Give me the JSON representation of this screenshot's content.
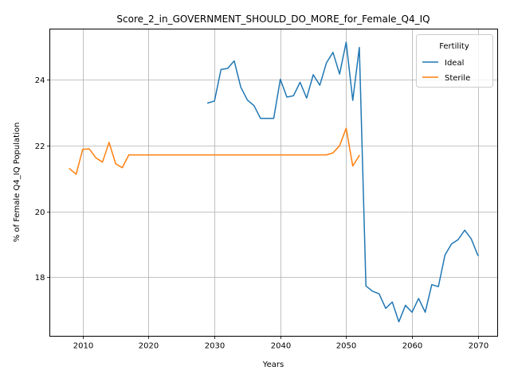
{
  "chart_data": {
    "type": "line",
    "title": "Score_2_in_GOVERNMENT_SHOULD_DO_MORE_for_Female_Q4_IQ",
    "xlabel": "Years",
    "ylabel": "% of Female Q4_IQ Population",
    "xlim": [
      2005,
      2073
    ],
    "ylim": [
      16.2,
      25.55
    ],
    "xticks": [
      2010,
      2020,
      2030,
      2040,
      2050,
      2060,
      2070
    ],
    "yticks": [
      18,
      20,
      22,
      24
    ],
    "grid": true,
    "legend": {
      "title": "Fertility",
      "placement": "top-right"
    },
    "series": [
      {
        "name": "Ideal",
        "color": "#1f77b4",
        "x": [
          2029,
          2030,
          2031,
          2032,
          2033,
          2034,
          2035,
          2036,
          2037,
          2038,
          2039,
          2040,
          2041,
          2042,
          2043,
          2044,
          2045,
          2046,
          2047,
          2048,
          2049,
          2050,
          2051,
          2052,
          2053,
          2054,
          2055,
          2056,
          2057,
          2058,
          2059,
          2060,
          2061,
          2062,
          2063,
          2064,
          2065,
          2066,
          2067,
          2068,
          2069,
          2070
        ],
        "y": [
          23.3,
          23.36,
          24.32,
          24.35,
          24.58,
          23.78,
          23.39,
          23.22,
          22.83,
          22.83,
          22.83,
          24.02,
          23.48,
          23.52,
          23.93,
          23.45,
          24.16,
          23.84,
          24.52,
          24.84,
          24.18,
          25.15,
          23.38,
          24.99,
          17.73,
          17.57,
          17.49,
          17.05,
          17.24,
          16.64,
          17.14,
          16.93,
          17.35,
          16.93,
          17.77,
          17.71,
          18.67,
          19.01,
          19.14,
          19.43,
          19.16,
          18.66
        ]
      },
      {
        "name": "Sterile",
        "color": "#ff7f0e",
        "x": [
          2008,
          2009,
          2010,
          2011,
          2012,
          2013,
          2014,
          2015,
          2016,
          2017,
          2018,
          2019,
          2020,
          2021,
          2022,
          2023,
          2024,
          2025,
          2026,
          2027,
          2028,
          2029,
          2030,
          2031,
          2032,
          2033,
          2034,
          2035,
          2036,
          2037,
          2038,
          2039,
          2040,
          2041,
          2042,
          2043,
          2044,
          2045,
          2046,
          2047,
          2048,
          2049,
          2050,
          2051,
          2052
        ],
        "y": [
          21.3,
          21.13,
          21.89,
          21.9,
          21.63,
          21.5,
          22.1,
          21.45,
          21.33,
          21.72,
          21.72,
          21.72,
          21.72,
          21.72,
          21.72,
          21.72,
          21.72,
          21.72,
          21.72,
          21.72,
          21.72,
          21.72,
          21.72,
          21.72,
          21.72,
          21.72,
          21.72,
          21.72,
          21.72,
          21.72,
          21.72,
          21.72,
          21.72,
          21.72,
          21.72,
          21.72,
          21.72,
          21.72,
          21.72,
          21.72,
          21.78,
          22.0,
          22.53,
          21.38,
          21.7
        ]
      }
    ]
  }
}
